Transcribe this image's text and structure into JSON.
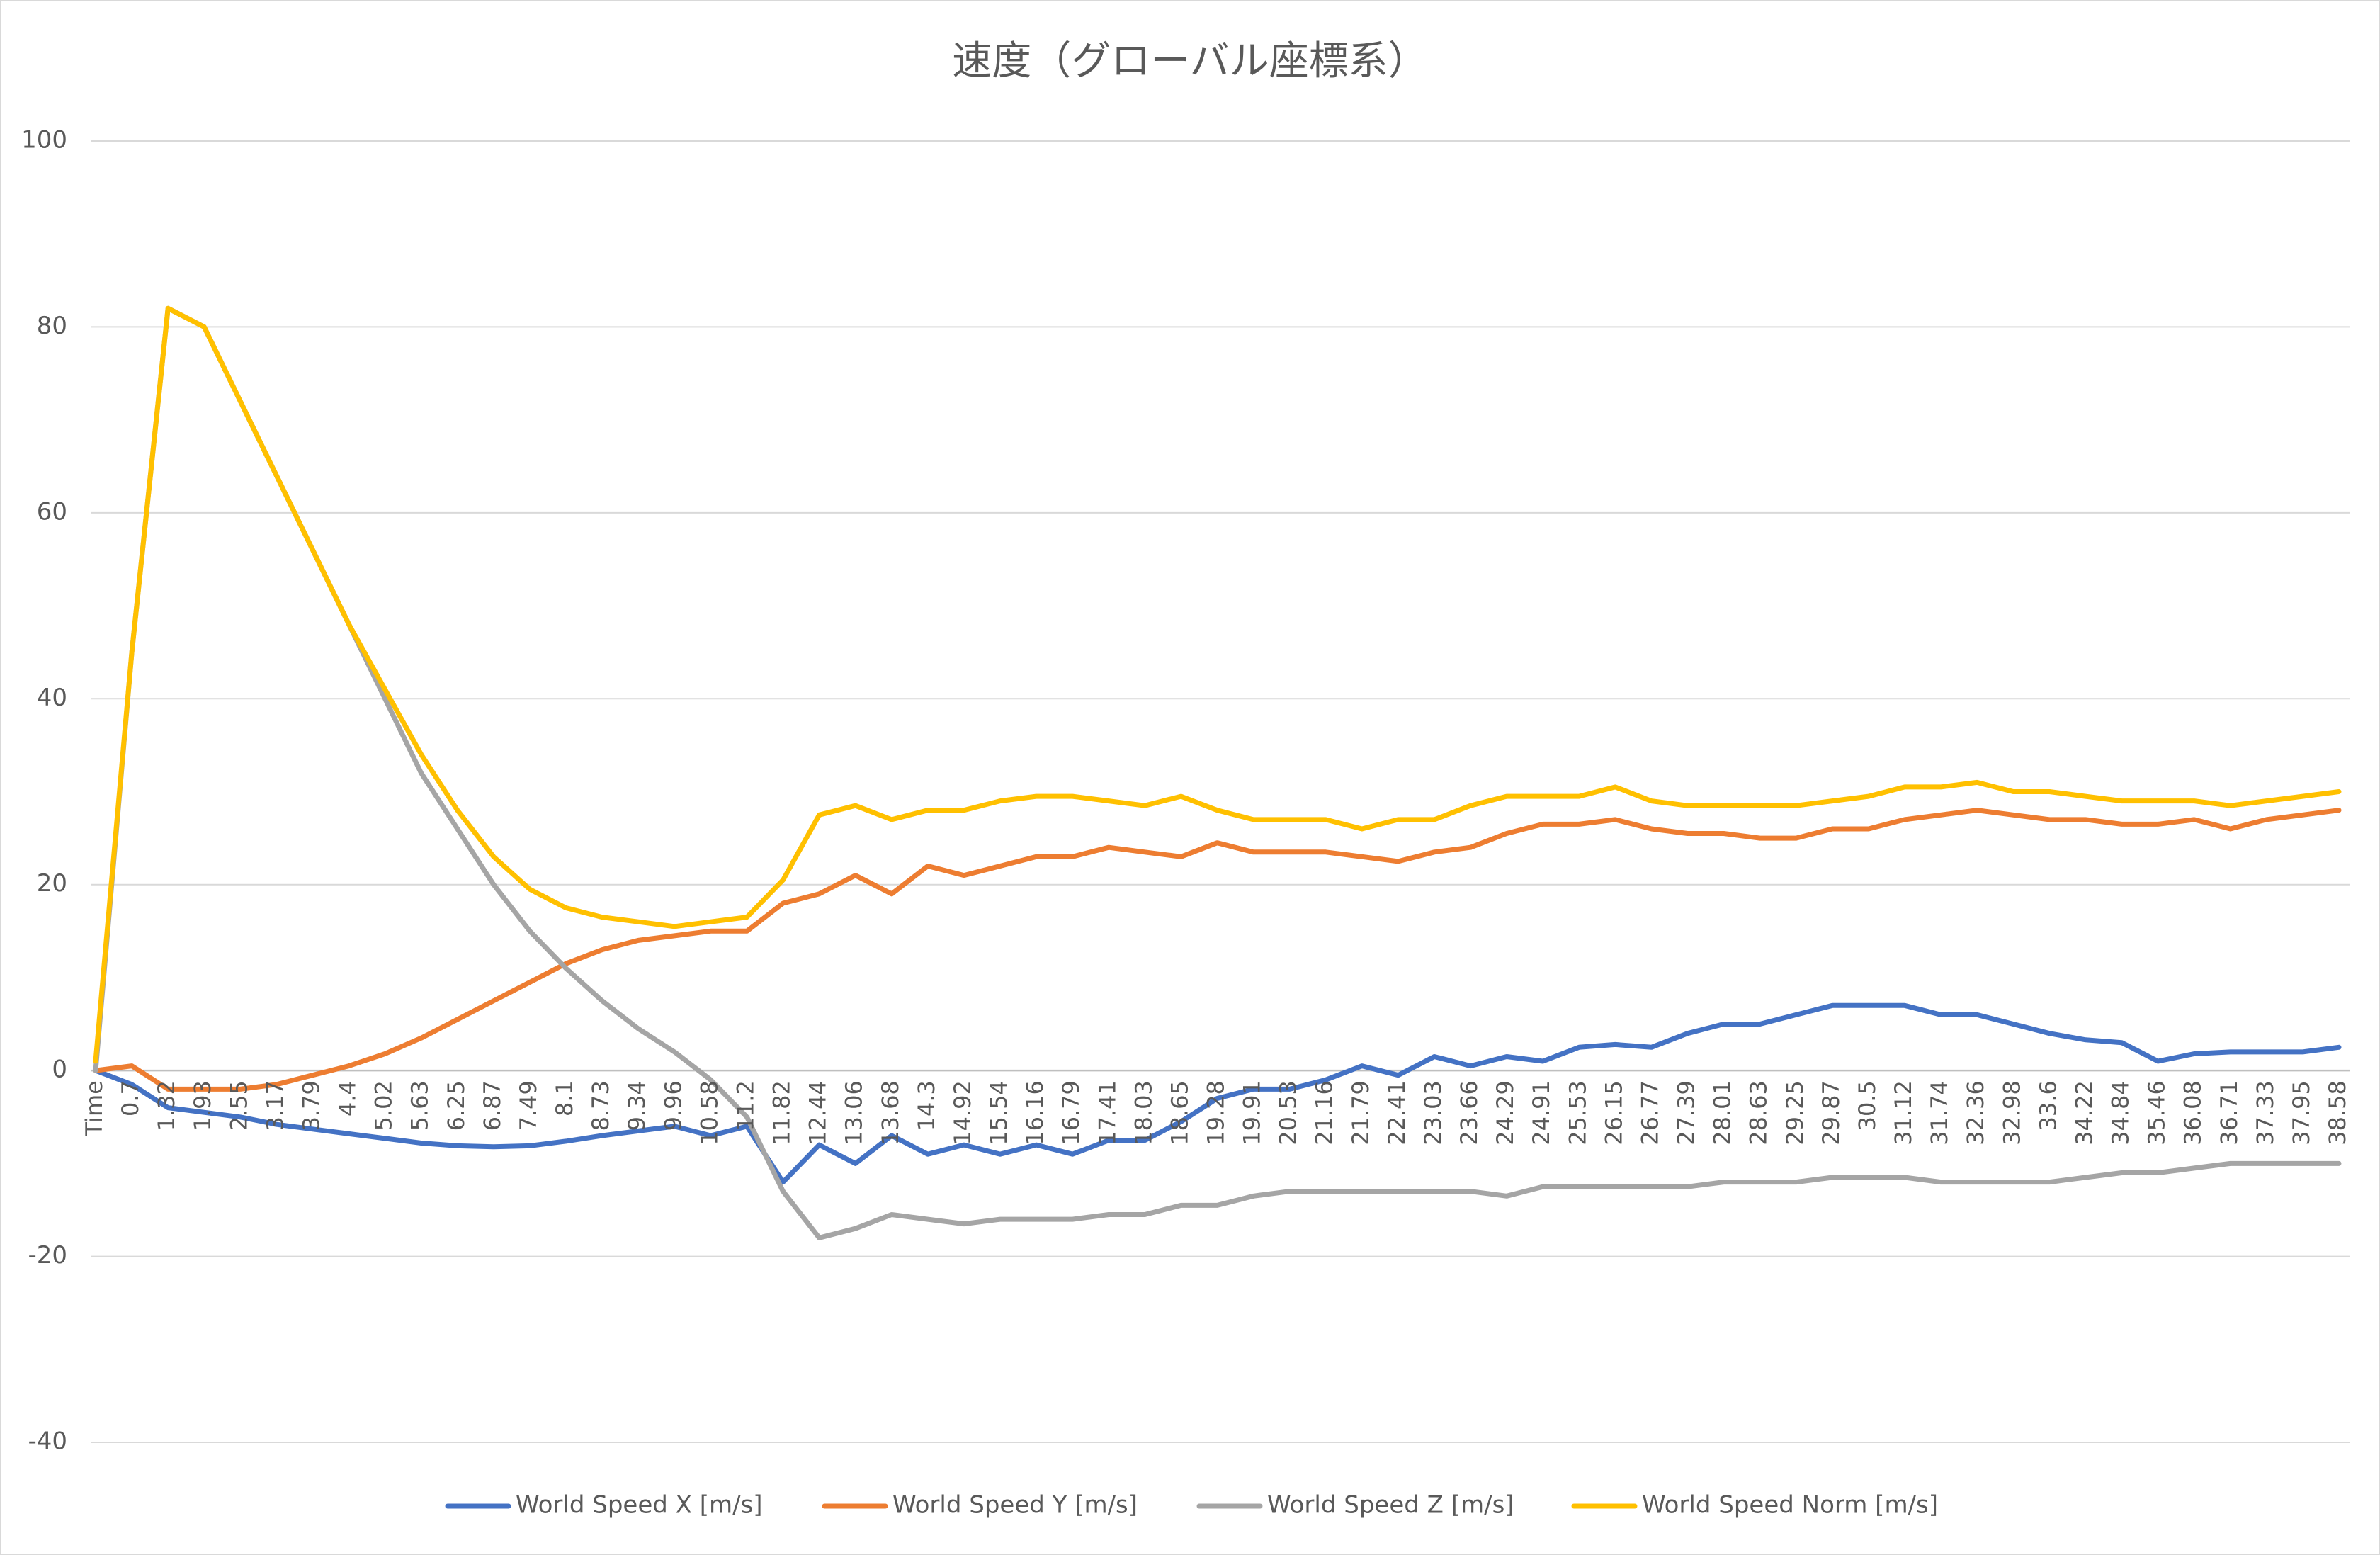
{
  "chart_data": {
    "type": "line",
    "title": "速度（グローバル座標系）",
    "categories": [
      "Time",
      "0.7",
      "1.32",
      "1.93",
      "2.55",
      "3.17",
      "3.79",
      "4.4",
      "5.02",
      "5.63",
      "6.25",
      "6.87",
      "7.49",
      "8.1",
      "8.73",
      "9.34",
      "9.96",
      "10.58",
      "11.2",
      "11.82",
      "12.44",
      "13.06",
      "13.68",
      "14.3",
      "14.92",
      "15.54",
      "16.16",
      "16.79",
      "17.41",
      "18.03",
      "18.65",
      "19.28",
      "19.91",
      "20.53",
      "21.16",
      "21.79",
      "22.41",
      "23.03",
      "23.66",
      "24.29",
      "24.91",
      "25.53",
      "26.15",
      "26.77",
      "27.39",
      "28.01",
      "28.63",
      "29.25",
      "29.87",
      "30.5",
      "31.12",
      "31.74",
      "32.36",
      "32.98",
      "33.6",
      "34.22",
      "34.84",
      "35.46",
      "36.08",
      "36.71",
      "37.33",
      "37.95",
      "38.58"
    ],
    "series": [
      {
        "name": "World Speed X [m/s]",
        "color": "#4472c4",
        "values": [
          0,
          -1.5,
          -4,
          -4.5,
          -5,
          -5.8,
          -6.3,
          -6.8,
          -7.3,
          -7.8,
          -8.1,
          -8.2,
          -8.1,
          -7.6,
          -7,
          -6.5,
          -6,
          -7,
          -6,
          -12,
          -8,
          -10,
          -7,
          -9,
          -8,
          -9,
          -8,
          -9,
          -7.5,
          -7.5,
          -5.5,
          -3,
          -2,
          -2,
          -1,
          0.5,
          -0.5,
          1.5,
          0.5,
          1.5,
          1,
          2.5,
          2.8,
          2.5,
          4,
          5,
          5,
          6,
          7,
          7,
          7,
          6,
          6,
          5,
          4,
          3.3,
          3,
          1,
          1.8,
          2,
          2,
          2,
          2.5
        ]
      },
      {
        "name": "World Speed Y [m/s]",
        "color": "#ed7d31",
        "values": [
          0,
          0.5,
          -2,
          -2,
          -2,
          -1.5,
          -0.5,
          0.5,
          1.8,
          3.5,
          5.5,
          7.5,
          9.5,
          11.5,
          13,
          14,
          14.5,
          15,
          15,
          18,
          19,
          21,
          19,
          22,
          21,
          22,
          23,
          23,
          24,
          23.5,
          23,
          24.5,
          23.5,
          23.5,
          23.5,
          23,
          22.5,
          23.5,
          24,
          25.5,
          26.5,
          26.5,
          27,
          26,
          25.5,
          25.5,
          25,
          25,
          26,
          26,
          27,
          27.5,
          28,
          27.5,
          27,
          27,
          26.5,
          26.5,
          27,
          26,
          27,
          27.5,
          28
        ]
      },
      {
        "name": "World Speed Z [m/s]",
        "color": "#a5a5a5",
        "values": [
          0,
          45,
          82,
          80,
          72,
          64,
          56,
          48,
          40,
          32,
          26,
          20,
          15,
          11,
          7.5,
          4.5,
          2,
          -1,
          -5,
          -13,
          -18,
          -17,
          -15.5,
          -16,
          -16.5,
          -16,
          -16,
          -16,
          -15.5,
          -15.5,
          -14.5,
          -14.5,
          -13.5,
          -13,
          -13,
          -13,
          -13,
          -13,
          -13,
          -13.5,
          -12.5,
          -12.5,
          -12.5,
          -12.5,
          -12.5,
          -12,
          -12,
          -12,
          -11.5,
          -11.5,
          -11.5,
          -12,
          -12,
          -12,
          -12,
          -11.5,
          -11,
          -11,
          -10.5,
          -10,
          -10,
          -10,
          -10
        ]
      },
      {
        "name": "World Speed Norm [m/s]",
        "color": "#ffc000",
        "values": [
          1,
          45,
          82,
          80,
          72,
          64,
          56,
          48,
          41,
          34,
          28,
          23,
          19.5,
          17.5,
          16.5,
          16,
          15.5,
          16,
          16.5,
          20.5,
          27.5,
          28.5,
          27,
          28,
          28,
          29,
          29.5,
          29.5,
          29,
          28.5,
          29.5,
          28,
          27,
          27,
          27,
          26,
          27,
          27,
          28.5,
          29.5,
          29.5,
          29.5,
          30.5,
          29,
          28.5,
          28.5,
          28.5,
          28.5,
          29,
          29.5,
          30.5,
          30.5,
          31,
          30,
          30,
          29.5,
          29,
          29,
          29,
          28.5,
          29,
          29.5,
          30
        ]
      }
    ],
    "ylim": [
      -40,
      100
    ],
    "yticks": [
      -40,
      -20,
      0,
      20,
      40,
      60,
      80,
      100
    ],
    "grid": true,
    "legend": "bottom"
  }
}
